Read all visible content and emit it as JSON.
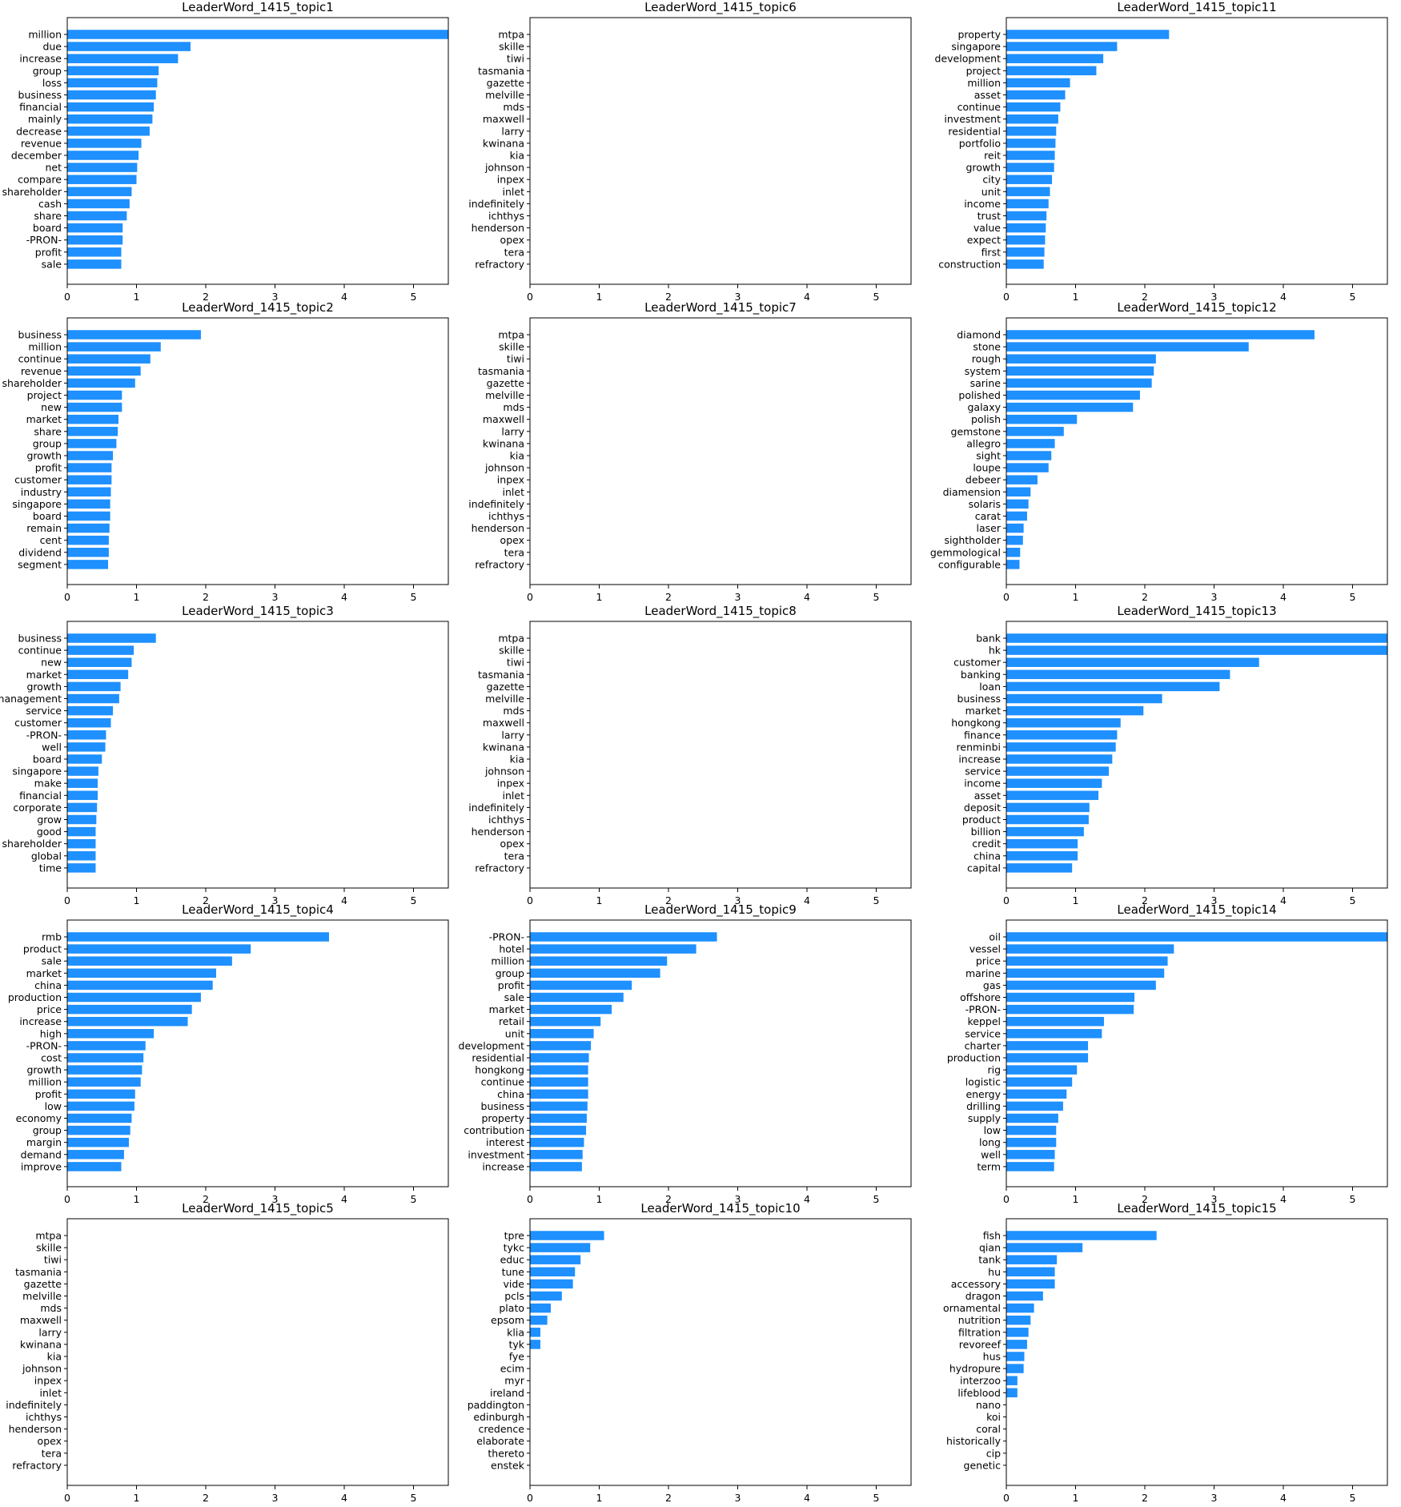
{
  "chart_data": [
    {
      "type": "bar",
      "orientation": "horizontal",
      "title": "LeaderWord_1415_topic1",
      "categories": [
        "million",
        "due",
        "increase",
        "group",
        "loss",
        "business",
        "financial",
        "mainly",
        "decrease",
        "revenue",
        "december",
        "net",
        "compare",
        "shareholder",
        "cash",
        "share",
        "board",
        "-PRON-",
        "profit",
        "sale"
      ],
      "values": [
        5.5,
        1.78,
        1.6,
        1.32,
        1.3,
        1.28,
        1.25,
        1.23,
        1.19,
        1.07,
        1.03,
        1.01,
        1.0,
        0.93,
        0.9,
        0.86,
        0.8,
        0.8,
        0.78,
        0.78
      ],
      "xticks": [
        "0",
        "1",
        "2",
        "3",
        "4",
        "5"
      ],
      "xlim": [
        0,
        5.5
      ],
      "bar_color": "#1e90ff"
    },
    {
      "type": "bar",
      "orientation": "horizontal",
      "title": "LeaderWord_1415_topic6",
      "categories": [
        "mtpa",
        "skille",
        "tiwi",
        "tasmania",
        "gazette",
        "melville",
        "mds",
        "maxwell",
        "larry",
        "kwinana",
        "kia",
        "johnson",
        "inpex",
        "inlet",
        "indefinitely",
        "ichthys",
        "henderson",
        "opex",
        "tera",
        "refractory"
      ],
      "values": [
        0,
        0,
        0,
        0,
        0,
        0,
        0,
        0,
        0,
        0,
        0,
        0,
        0,
        0,
        0,
        0,
        0,
        0,
        0,
        0
      ],
      "xticks": [
        "0",
        "1",
        "2",
        "3",
        "4",
        "5"
      ],
      "xlim": [
        0,
        5.5
      ],
      "bar_color": "#1e90ff"
    },
    {
      "type": "bar",
      "orientation": "horizontal",
      "title": "LeaderWord_1415_topic11",
      "categories": [
        "property",
        "singapore",
        "development",
        "project",
        "million",
        "asset",
        "continue",
        "investment",
        "residential",
        "portfolio",
        "reit",
        "growth",
        "city",
        "unit",
        "income",
        "trust",
        "value",
        "expect",
        "first",
        "construction"
      ],
      "values": [
        2.35,
        1.6,
        1.4,
        1.3,
        0.92,
        0.85,
        0.78,
        0.75,
        0.72,
        0.71,
        0.7,
        0.69,
        0.66,
        0.63,
        0.61,
        0.58,
        0.57,
        0.56,
        0.55,
        0.54
      ],
      "xticks": [
        "0",
        "1",
        "2",
        "3",
        "4",
        "5"
      ],
      "xlim": [
        0,
        5.5
      ],
      "bar_color": "#1e90ff"
    },
    {
      "type": "bar",
      "orientation": "horizontal",
      "title": "LeaderWord_1415_topic2",
      "categories": [
        "business",
        "million",
        "continue",
        "revenue",
        "shareholder",
        "project",
        "new",
        "market",
        "share",
        "group",
        "growth",
        "profit",
        "customer",
        "industry",
        "singapore",
        "board",
        "remain",
        "cent",
        "dividend",
        "segment"
      ],
      "values": [
        1.93,
        1.35,
        1.2,
        1.06,
        0.98,
        0.79,
        0.79,
        0.74,
        0.73,
        0.71,
        0.66,
        0.64,
        0.64,
        0.63,
        0.62,
        0.62,
        0.61,
        0.6,
        0.6,
        0.59
      ],
      "xticks": [
        "0",
        "1",
        "2",
        "3",
        "4",
        "5"
      ],
      "xlim": [
        0,
        5.5
      ],
      "bar_color": "#1e90ff"
    },
    {
      "type": "bar",
      "orientation": "horizontal",
      "title": "LeaderWord_1415_topic7",
      "categories": [
        "mtpa",
        "skille",
        "tiwi",
        "tasmania",
        "gazette",
        "melville",
        "mds",
        "maxwell",
        "larry",
        "kwinana",
        "kia",
        "johnson",
        "inpex",
        "inlet",
        "indefinitely",
        "ichthys",
        "henderson",
        "opex",
        "tera",
        "refractory"
      ],
      "values": [
        0,
        0,
        0,
        0,
        0,
        0,
        0,
        0,
        0,
        0,
        0,
        0,
        0,
        0,
        0,
        0,
        0,
        0,
        0,
        0
      ],
      "xticks": [
        "0",
        "1",
        "2",
        "3",
        "4",
        "5"
      ],
      "xlim": [
        0,
        5.5
      ],
      "bar_color": "#1e90ff"
    },
    {
      "type": "bar",
      "orientation": "horizontal",
      "title": "LeaderWord_1415_topic12",
      "categories": [
        "diamond",
        "stone",
        "rough",
        "system",
        "sarine",
        "polished",
        "galaxy",
        "polish",
        "gemstone",
        "allegro",
        "sight",
        "loupe",
        "debeer",
        "diamension",
        "solaris",
        "carat",
        "laser",
        "sightholder",
        "gemmological",
        "configurable"
      ],
      "values": [
        4.45,
        3.5,
        2.16,
        2.13,
        2.1,
        1.93,
        1.83,
        1.02,
        0.83,
        0.7,
        0.65,
        0.61,
        0.45,
        0.35,
        0.32,
        0.3,
        0.25,
        0.24,
        0.2,
        0.19
      ],
      "xticks": [
        "0",
        "1",
        "2",
        "3",
        "4",
        "5"
      ],
      "xlim": [
        0,
        5.5
      ],
      "bar_color": "#1e90ff"
    },
    {
      "type": "bar",
      "orientation": "horizontal",
      "title": "LeaderWord_1415_topic3",
      "categories": [
        "business",
        "continue",
        "new",
        "market",
        "growth",
        "management",
        "service",
        "customer",
        "-PRON-",
        "well",
        "board",
        "singapore",
        "make",
        "financial",
        "corporate",
        "grow",
        "good",
        "shareholder",
        "global",
        "time"
      ],
      "values": [
        1.28,
        0.96,
        0.93,
        0.88,
        0.77,
        0.75,
        0.66,
        0.63,
        0.56,
        0.55,
        0.5,
        0.45,
        0.44,
        0.44,
        0.43,
        0.42,
        0.41,
        0.41,
        0.41,
        0.41
      ],
      "xticks": [
        "0",
        "1",
        "2",
        "3",
        "4",
        "5"
      ],
      "xlim": [
        0,
        5.5
      ],
      "bar_color": "#1e90ff"
    },
    {
      "type": "bar",
      "orientation": "horizontal",
      "title": "LeaderWord_1415_topic8",
      "categories": [
        "mtpa",
        "skille",
        "tiwi",
        "tasmania",
        "gazette",
        "melville",
        "mds",
        "maxwell",
        "larry",
        "kwinana",
        "kia",
        "johnson",
        "inpex",
        "inlet",
        "indefinitely",
        "ichthys",
        "henderson",
        "opex",
        "tera",
        "refractory"
      ],
      "values": [
        0,
        0,
        0,
        0,
        0,
        0,
        0,
        0,
        0,
        0,
        0,
        0,
        0,
        0,
        0,
        0,
        0,
        0,
        0,
        0
      ],
      "xticks": [
        "0",
        "1",
        "2",
        "3",
        "4",
        "5"
      ],
      "xlim": [
        0,
        5.5
      ],
      "bar_color": "#1e90ff"
    },
    {
      "type": "bar",
      "orientation": "horizontal",
      "title": "LeaderWord_1415_topic13",
      "categories": [
        "bank",
        "hk",
        "customer",
        "banking",
        "loan",
        "business",
        "market",
        "hongkong",
        "finance",
        "renminbi",
        "increase",
        "service",
        "income",
        "asset",
        "deposit",
        "product",
        "billion",
        "credit",
        "china",
        "capital"
      ],
      "values": [
        5.5,
        5.5,
        3.65,
        3.23,
        3.08,
        2.25,
        1.98,
        1.65,
        1.6,
        1.58,
        1.53,
        1.48,
        1.38,
        1.33,
        1.2,
        1.19,
        1.12,
        1.03,
        1.03,
        0.95
      ],
      "xticks": [
        "0",
        "1",
        "2",
        "3",
        "4",
        "5"
      ],
      "xlim": [
        0,
        5.5
      ],
      "bar_color": "#1e90ff"
    },
    {
      "type": "bar",
      "orientation": "horizontal",
      "title": "LeaderWord_1415_topic4",
      "categories": [
        "rmb",
        "product",
        "sale",
        "market",
        "china",
        "production",
        "price",
        "increase",
        "high",
        "-PRON-",
        "cost",
        "growth",
        "million",
        "profit",
        "low",
        "economy",
        "group",
        "margin",
        "demand",
        "improve"
      ],
      "values": [
        3.78,
        2.65,
        2.38,
        2.15,
        2.1,
        1.93,
        1.8,
        1.74,
        1.25,
        1.13,
        1.1,
        1.08,
        1.06,
        0.98,
        0.97,
        0.93,
        0.91,
        0.89,
        0.82,
        0.78
      ],
      "xticks": [
        "0",
        "1",
        "2",
        "3",
        "4",
        "5"
      ],
      "xlim": [
        0,
        5.5
      ],
      "bar_color": "#1e90ff"
    },
    {
      "type": "bar",
      "orientation": "horizontal",
      "title": "LeaderWord_1415_topic9",
      "categories": [
        "-PRON-",
        "hotel",
        "million",
        "group",
        "profit",
        "sale",
        "market",
        "retail",
        "unit",
        "development",
        "residential",
        "hongkong",
        "continue",
        "china",
        "business",
        "property",
        "contribution",
        "interest",
        "investment",
        "increase"
      ],
      "values": [
        2.7,
        2.4,
        1.98,
        1.88,
        1.47,
        1.35,
        1.18,
        1.02,
        0.92,
        0.88,
        0.85,
        0.84,
        0.84,
        0.84,
        0.83,
        0.82,
        0.81,
        0.78,
        0.76,
        0.75
      ],
      "xticks": [
        "0",
        "1",
        "2",
        "3",
        "4",
        "5"
      ],
      "xlim": [
        0,
        5.5
      ],
      "bar_color": "#1e90ff"
    },
    {
      "type": "bar",
      "orientation": "horizontal",
      "title": "LeaderWord_1415_topic14",
      "categories": [
        "oil",
        "vessel",
        "price",
        "marine",
        "gas",
        "offshore",
        "-PRON-",
        "keppel",
        "service",
        "charter",
        "production",
        "rig",
        "logistic",
        "energy",
        "drilling",
        "supply",
        "low",
        "long",
        "well",
        "term"
      ],
      "values": [
        5.5,
        2.42,
        2.33,
        2.28,
        2.16,
        1.85,
        1.84,
        1.41,
        1.38,
        1.18,
        1.18,
        1.02,
        0.95,
        0.87,
        0.82,
        0.75,
        0.72,
        0.72,
        0.7,
        0.69
      ],
      "xticks": [
        "0",
        "1",
        "2",
        "3",
        "4",
        "5"
      ],
      "xlim": [
        0,
        5.5
      ],
      "bar_color": "#1e90ff"
    },
    {
      "type": "bar",
      "orientation": "horizontal",
      "title": "LeaderWord_1415_topic5",
      "categories": [
        "mtpa",
        "skille",
        "tiwi",
        "tasmania",
        "gazette",
        "melville",
        "mds",
        "maxwell",
        "larry",
        "kwinana",
        "kia",
        "johnson",
        "inpex",
        "inlet",
        "indefinitely",
        "ichthys",
        "henderson",
        "opex",
        "tera",
        "refractory"
      ],
      "values": [
        0,
        0,
        0,
        0,
        0,
        0,
        0,
        0,
        0,
        0,
        0,
        0,
        0,
        0,
        0,
        0,
        0,
        0,
        0,
        0
      ],
      "xticks": [
        "0",
        "1",
        "2",
        "3",
        "4",
        "5"
      ],
      "xlim": [
        0,
        5.5
      ],
      "bar_color": "#1e90ff"
    },
    {
      "type": "bar",
      "orientation": "horizontal",
      "title": "LeaderWord_1415_topic10",
      "categories": [
        "tpre",
        "tykc",
        "educ",
        "tune",
        "vide",
        "pcls",
        "plato",
        "epsom",
        "klia",
        "tyk",
        "fye",
        "ecim",
        "myr",
        "ireland",
        "paddington",
        "edinburgh",
        "credence",
        "elaborate",
        "thereto",
        "enstek"
      ],
      "values": [
        1.07,
        0.87,
        0.73,
        0.65,
        0.62,
        0.46,
        0.3,
        0.25,
        0.15,
        0.15,
        0,
        0,
        0,
        0,
        0,
        0,
        0,
        0,
        0,
        0
      ],
      "xticks": [
        "0",
        "1",
        "2",
        "3",
        "4",
        "5"
      ],
      "xlim": [
        0,
        5.5
      ],
      "bar_color": "#1e90ff"
    },
    {
      "type": "bar",
      "orientation": "horizontal",
      "title": "LeaderWord_1415_topic15",
      "categories": [
        "fish",
        "qian",
        "tank",
        "hu",
        "accessory",
        "dragon",
        "ornamental",
        "nutrition",
        "filtration",
        "revoreef",
        "hus",
        "hydropure",
        "interzoo",
        "lifeblood",
        "nano",
        "koi",
        "coral",
        "historically",
        "cip",
        "genetic"
      ],
      "values": [
        2.17,
        1.1,
        0.73,
        0.7,
        0.7,
        0.53,
        0.4,
        0.35,
        0.32,
        0.3,
        0.26,
        0.25,
        0.16,
        0.16,
        0,
        0,
        0,
        0,
        0,
        0
      ],
      "xticks": [
        "0",
        "1",
        "2",
        "3",
        "4",
        "5"
      ],
      "xlim": [
        0,
        5.5
      ],
      "bar_color": "#1e90ff"
    }
  ]
}
